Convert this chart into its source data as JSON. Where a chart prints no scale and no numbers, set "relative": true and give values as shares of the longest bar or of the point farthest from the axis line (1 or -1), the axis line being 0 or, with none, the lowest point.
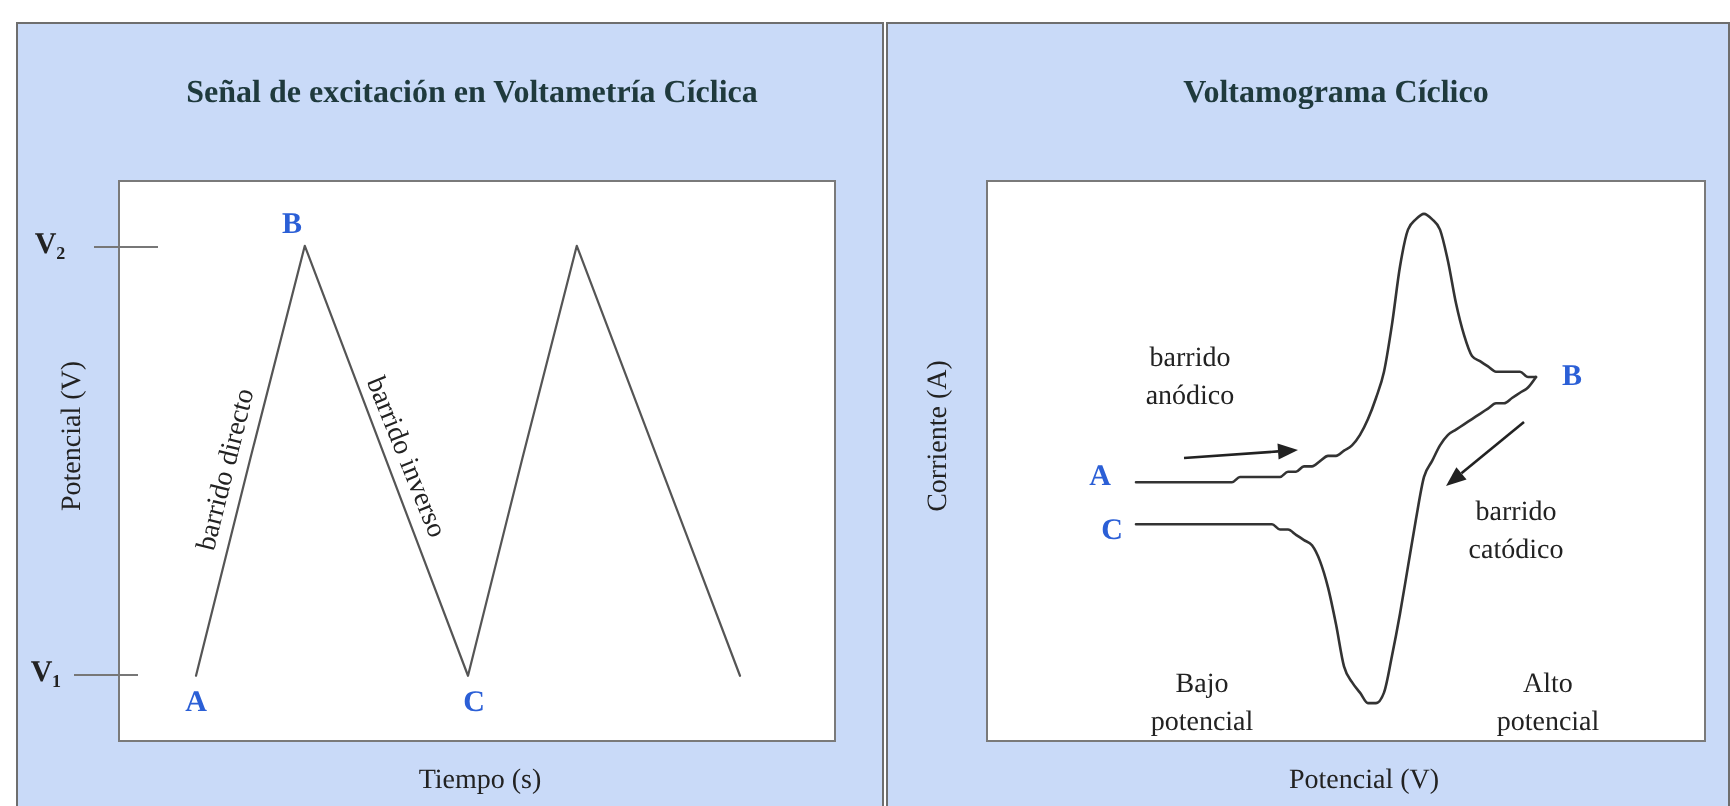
{
  "chart_data": [
    {
      "type": "line",
      "title": "Señal de excitación en Voltametría Cíclica",
      "xlabel": "Tiempo (s)",
      "ylabel": "Potencial (V)",
      "relative": true,
      "categories": [
        null,
        null,
        null,
        null,
        null,
        null,
        null,
        null,
        null,
        null,
        null
      ],
      "series": [
        {
          "color": "#555555",
          "values": [
            0.13,
            0.57,
            1,
            0.71,
            0.42,
            0.13,
            0.57,
            1,
            0.71,
            0.42,
            0.13
          ]
        }
      ],
      "annotations": [
        "V₂",
        "V₁",
        "A",
        "B",
        "C",
        "barrido directo",
        "barrido inverso"
      ]
    },
    {
      "type": "line",
      "title": "Voltamograma Cíclico",
      "xlabel": "Potencial (V)",
      "ylabel": "Corriente (A)",
      "relative": true,
      "categories": [
        null,
        null,
        null,
        null,
        null,
        null,
        null,
        null,
        null,
        null,
        null,
        null,
        null,
        null,
        null,
        null,
        null,
        null,
        null,
        null,
        null,
        null,
        null,
        null,
        null,
        null,
        null,
        null,
        null,
        null,
        null,
        null,
        null,
        null,
        null,
        null,
        null,
        null,
        null,
        null,
        null,
        null,
        null,
        null,
        null,
        null,
        null,
        null,
        null,
        null,
        null
      ],
      "series": [
        {
          "color": "#333333",
          "values": [
            0.49,
            0.49,
            0.49,
            0.49,
            0.49,
            0.49,
            0.49,
            0.49,
            0.49,
            0.49,
            0.49,
            0.49,
            0.49,
            0.5,
            0.5,
            0.5,
            0.5,
            0.5,
            0.5,
            0.51,
            0.51,
            0.52,
            0.52,
            0.53,
            0.54,
            0.54,
            0.55,
            0.56,
            0.58,
            0.61,
            0.65,
            0.7,
            0.79,
            0.9,
            0.97,
            0.99,
            1,
            0.99,
            0.97,
            0.91,
            0.83,
            0.77,
            0.73,
            0.72,
            0.71,
            0.7,
            0.7,
            0.7,
            0.7,
            0.69,
            0.69
          ]
        },
        {
          "color": "#333333",
          "values": [
            0.41,
            0.41,
            0.41,
            0.41,
            0.41,
            0.41,
            0.41,
            0.41,
            0.41,
            0.41,
            0.41,
            0.41,
            0.41,
            0.41,
            0.41,
            0.41,
            0.41,
            0.41,
            0.4,
            0.4,
            0.39,
            0.38,
            0.37,
            0.34,
            0.29,
            0.22,
            0.14,
            0.11,
            0.09,
            0.07,
            0.07,
            0.09,
            0.16,
            0.24,
            0.33,
            0.42,
            0.5,
            0.53,
            0.56,
            0.58,
            0.59,
            0.6,
            0.61,
            0.62,
            0.63,
            0.64,
            0.64,
            0.65,
            0.66,
            0.67,
            0.69
          ]
        }
      ],
      "annotations": [
        "A",
        "B",
        "C",
        "barrido anódico",
        "barrido catódico",
        "Bajo potencial",
        "Alto potencial"
      ]
    }
  ]
}
